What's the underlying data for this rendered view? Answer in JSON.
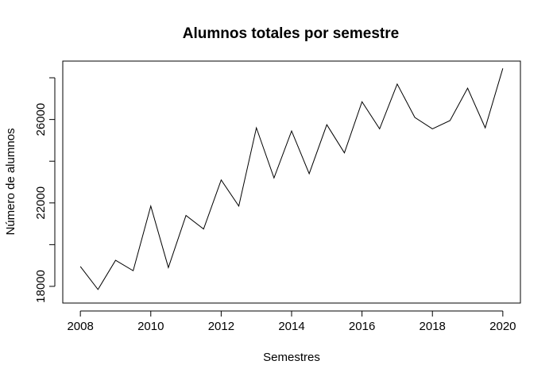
{
  "chart_data": {
    "type": "line",
    "title": "Alumnos totales por semestre",
    "xlabel": "Semestres",
    "ylabel": "Número de alumnos",
    "xlim": [
      2007.5,
      2020.5
    ],
    "ylim": [
      17200,
      28800
    ],
    "x_ticks": [
      2008,
      2010,
      2012,
      2014,
      2016,
      2018,
      2020
    ],
    "x_tick_labels": [
      "2008",
      "2010",
      "2012",
      "2014",
      "2016",
      "2018",
      "2020"
    ],
    "y_ticks": [
      18000,
      22000,
      26000
    ],
    "y_tick_labels": [
      "18000",
      "22000",
      "26000"
    ],
    "y_minor_ticks": [
      20000,
      24000,
      28000
    ],
    "grid": false,
    "series": [
      {
        "x": [
          2008,
          2008.5,
          2009,
          2009.5,
          2010,
          2010.5,
          2011,
          2011.5,
          2012,
          2012.5,
          2013,
          2013.5,
          2014,
          2014.5,
          2015,
          2015.5,
          2016,
          2016.5,
          2017,
          2017.5,
          2018,
          2018.5,
          2019,
          2019.5,
          2020
        ],
        "values": [
          18950,
          17850,
          19250,
          18750,
          21850,
          18900,
          21400,
          20750,
          23100,
          21850,
          25600,
          23200,
          25450,
          23400,
          25750,
          24400,
          26850,
          25550,
          27700,
          26100,
          25550,
          25950,
          27500,
          25600,
          28450
        ],
        "color": "#000000"
      }
    ]
  }
}
